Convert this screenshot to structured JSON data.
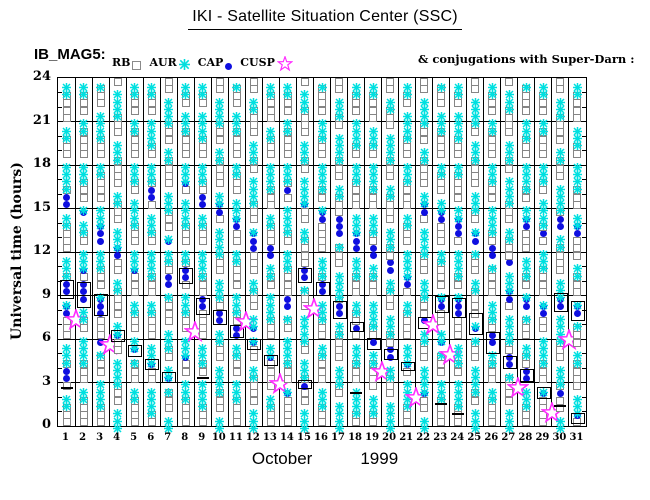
{
  "title": "IKI - Satellite Situation Center (SSC)",
  "legend": {
    "prefix": "IB_MAG5:",
    "items": [
      {
        "label": "RB",
        "symbol": "rb-open-square",
        "color": "#8a8a8a"
      },
      {
        "label": "AUR",
        "symbol": "aur-asterisk",
        "color": "#00e0e0"
      },
      {
        "label": "CAP",
        "symbol": "cap-filled-dot",
        "color": "#0f0fe0"
      },
      {
        "label": "CUSP",
        "symbol": "cusp-open-star",
        "color": "#ff2bff"
      }
    ],
    "right_note": "& conjugations with Super-Darn :"
  },
  "axes": {
    "y_title": "Universal time (hours)",
    "y_ticks": [
      0,
      3,
      6,
      9,
      12,
      15,
      18,
      21,
      24
    ],
    "y_range": [
      0,
      24
    ],
    "y_minor_step": 1,
    "x_ticks": [
      1,
      2,
      3,
      4,
      5,
      6,
      7,
      8,
      9,
      10,
      11,
      12,
      13,
      14,
      15,
      16,
      17,
      18,
      19,
      20,
      21,
      22,
      23,
      24,
      25,
      26,
      27,
      28,
      29,
      30,
      31
    ],
    "x_title_month": "October",
    "x_title_year": "1999"
  },
  "colors": {
    "background": "#ffffff",
    "frame": "#000000",
    "rb": "#858585",
    "aur": "#00e0e0",
    "cap": "#0f0fe0",
    "cusp": "#ff2bff",
    "conjugation_box": "#000000"
  },
  "chart_data": {
    "type": "symbol-timeline",
    "title": "IKI - Satellite Situation Center (SSC)",
    "x": "day of October 1999 (1-31)",
    "y": "Universal time (hours), 0-24, resolution 0.5 h",
    "symbol_meaning": {
      "R": "RB region (gray open square)",
      "A": "AUR auroral region (cyan asterisk)",
      "C": "CAP polar cap (blue filled dot)",
      "star": "CUSP crossing (magenta open star), hour given",
      "boxes": "black rectangles = conjugations with Super-Darn, [start,end] hours",
      "dashes": "short black tick on column, hour given",
      "band_note": "outside CAP clusters the column alternates RB/AUR bands (approximated); phase 0 = RB at bottom, 1 = AUR at bottom"
    },
    "days": [
      {
        "day": 1,
        "cap": [
          [
            3.2,
            4.0
          ],
          [
            7.6,
            8.6
          ],
          [
            8.9,
            10.1
          ],
          [
            15.1,
            16.1
          ]
        ],
        "boxes": [
          [
            8.9,
            10.1
          ]
        ],
        "star": 7.3,
        "dashes": [
          2.6
        ],
        "phase": 0
      },
      {
        "day": 2,
        "cap": [
          [
            8.3,
            9.9
          ],
          [
            10.3,
            10.9
          ],
          [
            14.3,
            15.2
          ]
        ],
        "boxes": [
          [
            8.3,
            9.9
          ]
        ],
        "star": null,
        "dashes": [],
        "phase": 0
      },
      {
        "day": 3,
        "cap": [
          [
            5.3,
            5.9
          ],
          [
            7.7,
            9.1
          ],
          [
            12.7,
            13.8
          ]
        ],
        "boxes": [
          [
            7.7,
            9.1
          ]
        ],
        "star": 5.6,
        "dashes": [],
        "phase": 0
      },
      {
        "day": 4,
        "cap": [
          [
            5.9,
            6.6
          ],
          [
            11.5,
            12.6
          ]
        ],
        "boxes": [
          [
            5.9,
            6.6
          ]
        ],
        "star": null,
        "dashes": [],
        "phase": 1
      },
      {
        "day": 5,
        "cap": [
          [
            4.9,
            5.6
          ],
          [
            10.4,
            11.2
          ]
        ],
        "boxes": [
          [
            4.9,
            5.6
          ]
        ],
        "star": null,
        "dashes": [],
        "phase": 0
      },
      {
        "day": 6,
        "cap": [
          [
            4.0,
            4.6
          ],
          [
            15.5,
            16.3
          ]
        ],
        "boxes": [
          [
            4.0,
            4.6
          ]
        ],
        "star": null,
        "dashes": [],
        "phase": 0
      },
      {
        "day": 7,
        "cap": [
          [
            3.1,
            3.7
          ],
          [
            9.3,
            10.6
          ],
          [
            12.4,
            13.2
          ]
        ],
        "boxes": [
          [
            3.1,
            3.7
          ]
        ],
        "star": null,
        "dashes": [],
        "phase": 1
      },
      {
        "day": 8,
        "cap": [
          [
            4.5,
            5.1
          ],
          [
            9.9,
            10.9
          ],
          [
            16.3,
            17.1
          ]
        ],
        "boxes": [
          [
            9.9,
            10.9
          ]
        ],
        "star": 6.5,
        "dashes": [],
        "phase": 0
      },
      {
        "day": 9,
        "cap": [
          [
            7.8,
            8.8
          ],
          [
            15.0,
            16.1
          ]
        ],
        "boxes": [
          [
            7.8,
            8.8
          ]
        ],
        "star": null,
        "dashes": [
          3.3
        ],
        "phase": 0
      },
      {
        "day": 10,
        "cap": [
          [
            7.1,
            8.0
          ],
          [
            14.6,
            15.5
          ]
        ],
        "boxes": [
          [
            7.1,
            8.0
          ]
        ],
        "star": null,
        "dashes": [],
        "phase": 1
      },
      {
        "day": 11,
        "cap": [
          [
            6.2,
            7.0
          ],
          [
            13.6,
            14.4
          ]
        ],
        "boxes": [
          [
            6.2,
            7.0
          ]
        ],
        "star": 7.2,
        "dashes": [],
        "phase": 0
      },
      {
        "day": 12,
        "cap": [
          [
            5.4,
            6.0
          ],
          [
            6.6,
            7.2
          ],
          [
            12.1,
            13.7
          ]
        ],
        "boxes": [
          [
            5.4,
            6.0
          ]
        ],
        "star": null,
        "dashes": [],
        "phase": 1
      },
      {
        "day": 13,
        "cap": [
          [
            4.3,
            4.9
          ],
          [
            11.5,
            12.3
          ]
        ],
        "boxes": [
          [
            4.3,
            4.9
          ]
        ],
        "star": 2.9,
        "dashes": [],
        "phase": 0
      },
      {
        "day": 14,
        "cap": [
          [
            2.2,
            2.7
          ],
          [
            7.9,
            8.9
          ],
          [
            15.8,
            16.5
          ]
        ],
        "boxes": [],
        "star": null,
        "dashes": [],
        "phase": 0
      },
      {
        "day": 15,
        "cap": [
          [
            2.7,
            3.2
          ],
          [
            10.0,
            10.9
          ],
          [
            14.8,
            15.6
          ]
        ],
        "boxes": [
          [
            10.0,
            10.9
          ],
          [
            2.7,
            3.2
          ]
        ],
        "star": 8.1,
        "dashes": [],
        "phase": 1
      },
      {
        "day": 16,
        "cap": [
          [
            9.1,
            9.9
          ],
          [
            14.1,
            15.0
          ]
        ],
        "boxes": [
          [
            9.1,
            9.9
          ]
        ],
        "star": null,
        "dashes": [],
        "phase": 0
      },
      {
        "day": 17,
        "cap": [
          [
            7.5,
            8.6
          ],
          [
            12.9,
            14.3
          ]
        ],
        "boxes": [
          [
            7.5,
            8.6
          ]
        ],
        "star": null,
        "dashes": [],
        "phase": 1
      },
      {
        "day": 18,
        "cap": [
          [
            6.6,
            7.2
          ],
          [
            12.2,
            13.7
          ]
        ],
        "boxes": [
          [
            6.6,
            7.2
          ]
        ],
        "star": null,
        "dashes": [
          2.3
        ],
        "phase": 0
      },
      {
        "day": 19,
        "cap": [
          [
            5.4,
            6.1
          ],
          [
            11.3,
            12.5
          ]
        ],
        "boxes": [
          [
            5.4,
            6.1
          ]
        ],
        "star": 3.7,
        "dashes": [],
        "phase": 0
      },
      {
        "day": 20,
        "cap": [
          [
            4.7,
            5.3
          ],
          [
            10.4,
            11.4
          ]
        ],
        "boxes": [
          [
            4.7,
            5.3
          ]
        ],
        "star": null,
        "dashes": [],
        "phase": 1
      },
      {
        "day": 21,
        "cap": [
          [
            3.9,
            4.4
          ],
          [
            9.7,
            10.4
          ]
        ],
        "boxes": [
          [
            3.9,
            4.4
          ]
        ],
        "star": 1.9,
        "dashes": [],
        "phase": 0
      },
      {
        "day": 22,
        "cap": [
          [
            2.0,
            2.5
          ],
          [
            6.8,
            7.5
          ],
          [
            14.5,
            15.4
          ]
        ],
        "boxes": [
          [
            6.8,
            7.5
          ]
        ],
        "star": 7.0,
        "dashes": [],
        "phase": 1
      },
      {
        "day": 23,
        "cap": [
          [
            5.4,
            6.0
          ],
          [
            7.9,
            9.0
          ],
          [
            13.8,
            14.9
          ]
        ],
        "boxes": [
          [
            7.9,
            9.0
          ]
        ],
        "star": 4.9,
        "dashes": [
          1.5
        ],
        "phase": 0
      },
      {
        "day": 24,
        "cap": [
          [
            7.6,
            8.8
          ],
          [
            13.2,
            14.5
          ]
        ],
        "boxes": [
          [
            7.6,
            8.8
          ]
        ],
        "star": null,
        "dashes": [
          0.8
        ],
        "phase": 0
      },
      {
        "day": 25,
        "cap": [
          [
            6.4,
            7.2
          ],
          [
            12.3,
            13.3
          ]
        ],
        "boxes": [
          [
            6.4,
            7.8
          ]
        ],
        "star": null,
        "dashes": [],
        "phase": 1
      },
      {
        "day": 26,
        "cap": [
          [
            5.3,
            6.3
          ],
          [
            11.7,
            12.5
          ]
        ],
        "boxes": [
          [
            5.1,
            6.5
          ]
        ],
        "star": null,
        "dashes": [],
        "phase": 0
      },
      {
        "day": 27,
        "cap": [
          [
            4.1,
            4.8
          ],
          [
            8.7,
            9.3
          ],
          [
            10.8,
            11.6
          ]
        ],
        "boxes": [
          [
            4.1,
            4.8
          ]
        ],
        "star": 2.6,
        "dashes": [],
        "phase": 1
      },
      {
        "day": 28,
        "cap": [
          [
            3.2,
            3.9
          ],
          [
            8.1,
            8.9
          ],
          [
            13.7,
            14.4
          ]
        ],
        "boxes": [
          [
            3.2,
            3.9
          ]
        ],
        "star": null,
        "dashes": [],
        "phase": 0
      },
      {
        "day": 29,
        "cap": [
          [
            2.0,
            2.7
          ],
          [
            7.6,
            8.3
          ],
          [
            12.9,
            13.6
          ]
        ],
        "boxes": [
          [
            2.0,
            2.7
          ]
        ],
        "star": 0.9,
        "dashes": [],
        "phase": 0
      },
      {
        "day": 30,
        "cap": [
          [
            1.8,
            2.3
          ],
          [
            8.0,
            9.2
          ],
          [
            13.5,
            14.3
          ]
        ],
        "boxes": [
          [
            8.0,
            9.2
          ]
        ],
        "star": 5.9,
        "dashes": [
          1.4
        ],
        "phase": 1
      },
      {
        "day": 31,
        "cap": [
          [
            0.3,
            0.9
          ],
          [
            7.4,
            8.6
          ],
          [
            12.8,
            13.8
          ]
        ],
        "boxes": [
          [
            7.4,
            8.6
          ],
          [
            0.3,
            0.9
          ]
        ],
        "star": null,
        "dashes": [],
        "phase": 0
      }
    ]
  }
}
